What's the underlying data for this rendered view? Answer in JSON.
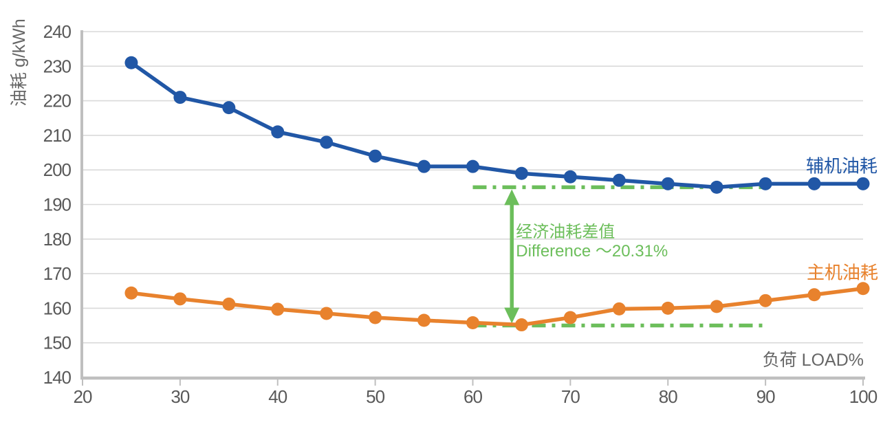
{
  "chart_data": {
    "type": "line",
    "title": "",
    "ylabel": "油耗 g/kWh",
    "xlabel": "负荷 LOAD%",
    "x": [
      25,
      30,
      35,
      40,
      45,
      50,
      55,
      60,
      65,
      70,
      75,
      80,
      85,
      90,
      95,
      100
    ],
    "series": [
      {
        "name": "辅机油耗",
        "color": "#2157A6",
        "values": [
          231,
          221,
          218,
          211,
          208,
          204,
          201,
          201,
          199,
          198,
          197,
          196,
          195,
          196,
          196,
          196
        ]
      },
      {
        "name": "主机油耗",
        "color": "#E8822D",
        "values": [
          164.4,
          162.7,
          161.2,
          159.7,
          158.5,
          157.3,
          156.5,
          155.8,
          155.2,
          157.3,
          159.8,
          160.0,
          160.5,
          162.2,
          163.9,
          165.7
        ]
      }
    ],
    "xlim": [
      20,
      100
    ],
    "ylim": [
      140,
      240
    ],
    "x_ticks": [
      20,
      30,
      40,
      50,
      60,
      70,
      80,
      90,
      100
    ],
    "y_ticks": [
      140,
      150,
      160,
      170,
      180,
      190,
      200,
      210,
      220,
      230,
      240
    ],
    "grid": "horizontal-only",
    "legend_position": "line-end-labels-right",
    "annotation": {
      "label_cn": "经济油耗差值",
      "label_en": "Difference ～20.31%",
      "color": "#6CBE5B",
      "upper_dash_y": 195,
      "lower_dash_y": 155,
      "dash_x_start": 60,
      "dash_x_end": 90,
      "arrow_x": 64
    },
    "style_colors": {
      "gridline": "#D9D9D9",
      "axis_line": "#BFBFBF",
      "tick_text": "#595959",
      "axis_title_text": "#6E6E6E",
      "background": "#FFFFFF"
    }
  }
}
